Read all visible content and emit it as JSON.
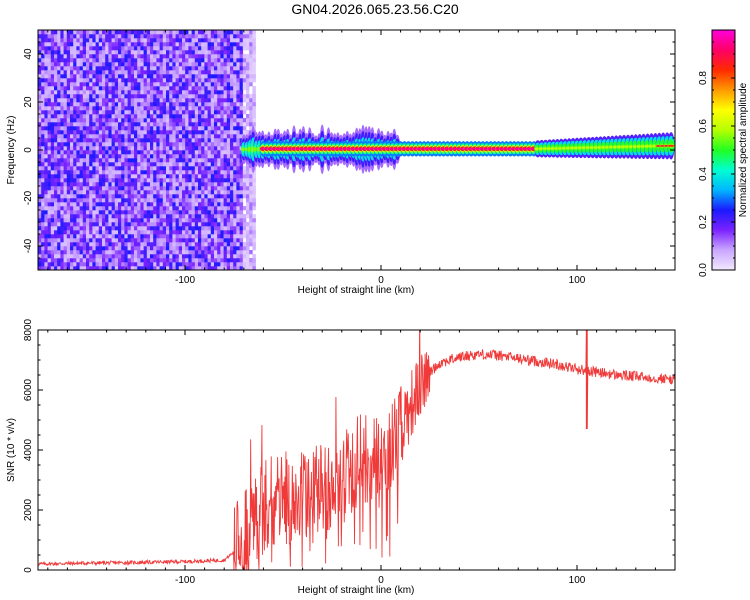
{
  "title": "GN04.2026.065.23.56.C20",
  "chart_data": [
    {
      "type": "heatmap",
      "xlabel": "Height of straight line (km)",
      "ylabel": "Frequency (Hz)",
      "xlim": [
        -175,
        150
      ],
      "ylim": [
        -50,
        50
      ],
      "xticks": [
        -100,
        0,
        100
      ],
      "yticks": [
        -40,
        -20,
        0,
        20,
        40
      ],
      "colorbar": {
        "label": "Normalized spectral amplitude",
        "range": [
          0,
          1
        ],
        "ticks": [
          0.0,
          0.2,
          0.4,
          0.6,
          0.8
        ],
        "colors": [
          "#f3e8ff",
          "#c9a6ff",
          "#7a22ff",
          "#1a1aff",
          "#00b7ff",
          "#00ffd0",
          "#22ff22",
          "#b6ff00",
          "#ffff00",
          "#ff9900",
          "#ff2a00",
          "#ff0066",
          "#ff00dd"
        ]
      },
      "regions": [
        {
          "x_range": [
            -175,
            -65
          ],
          "f_range": [
            -50,
            50
          ],
          "amplitude": 0.1,
          "description_level": "noise"
        },
        {
          "x_range": [
            -70,
            10
          ],
          "f_range": [
            -8,
            8
          ],
          "amplitude": 0.45
        },
        {
          "x_range": [
            -60,
            80
          ],
          "f_range": [
            -2,
            2
          ],
          "amplitude": 0.95
        },
        {
          "x_range": [
            80,
            150
          ],
          "f_range": [
            -4,
            4
          ],
          "amplitude": 0.5
        }
      ]
    },
    {
      "type": "line",
      "xlabel": "Height of straight line (km)",
      "ylabel": "SNR (10 * v/v)",
      "xlim": [
        -175,
        150
      ],
      "ylim": [
        0,
        8000
      ],
      "xticks": [
        -100,
        0,
        100
      ],
      "yticks": [
        0,
        2000,
        4000,
        6000,
        8000
      ],
      "color": "#f03a3a",
      "series": [
        {
          "x": [
            -175,
            -150,
            -125,
            -100,
            -80,
            -75,
            -70,
            -65,
            -60,
            -55,
            -50,
            -45,
            -40,
            -35,
            -30,
            -25,
            -20,
            -15,
            -10,
            -5,
            0,
            5,
            10,
            15,
            20,
            25,
            30,
            40,
            50,
            60,
            70,
            80,
            90,
            100,
            105,
            110,
            120,
            130,
            140,
            150
          ],
          "y": [
            200,
            230,
            250,
            280,
            330,
            600,
            1200,
            1700,
            2100,
            2300,
            2400,
            2500,
            2500,
            2550,
            2700,
            3000,
            2900,
            3300,
            3700,
            3600,
            3600,
            4200,
            4800,
            5500,
            6100,
            6600,
            6900,
            7100,
            7200,
            7150,
            7050,
            6950,
            6850,
            6700,
            6650,
            6600,
            6500,
            6450,
            6400,
            6350
          ]
        }
      ],
      "annotations": [
        {
          "x": 105,
          "y_range": [
            4700,
            8000
          ],
          "note": "spike"
        }
      ]
    }
  ]
}
